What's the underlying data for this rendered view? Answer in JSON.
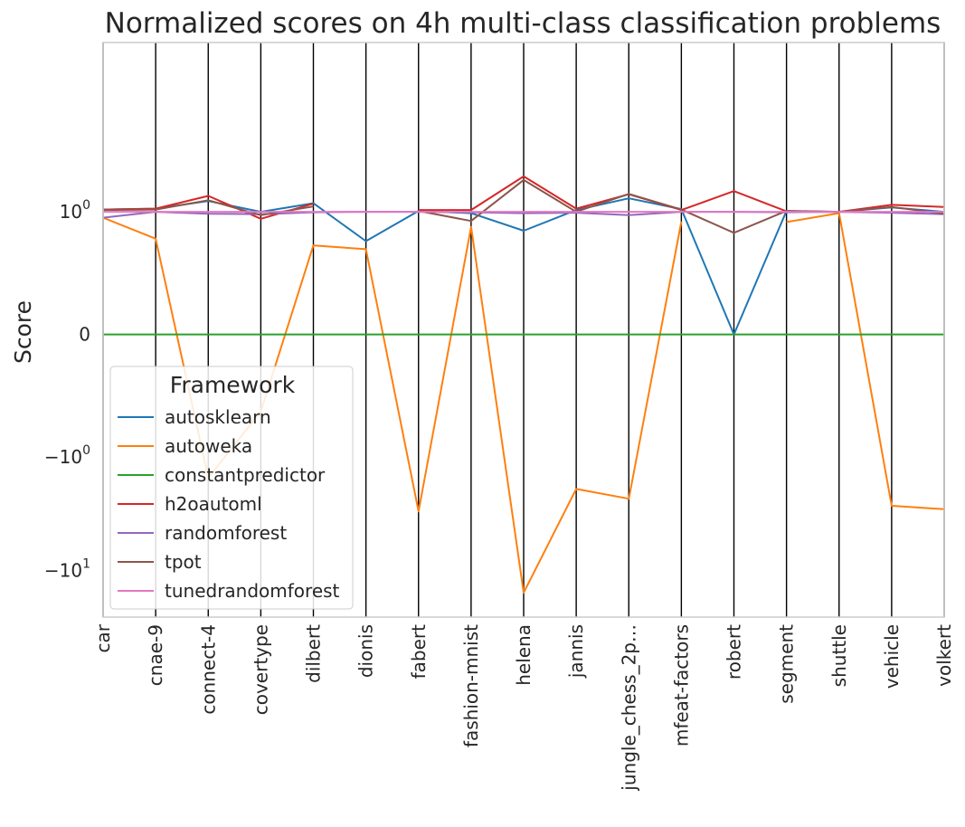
{
  "chart_data": {
    "type": "line",
    "title": "Normalized scores on 4h multi-class classification problems",
    "ylabel": "Score",
    "xlabel": "",
    "yscale": "symlog",
    "ylim": [
      -25,
      30
    ],
    "grid": false,
    "vertical_lines_at_categories": true,
    "yticks": [
      {
        "value": 1,
        "base": "10",
        "exp": "0",
        "sign": ""
      },
      {
        "value": 0,
        "label": "0"
      },
      {
        "value": -1,
        "base": "10",
        "exp": "0",
        "sign": "−"
      },
      {
        "value": -10,
        "base": "10",
        "exp": "1",
        "sign": "−"
      }
    ],
    "categories": [
      "car",
      "cnae-9",
      "connect-4",
      "covertype",
      "dilbert",
      "dionis",
      "fabert",
      "fashion-mnist",
      "helena",
      "jannis",
      "jungle_chess_2p…",
      "mfeat-factors",
      "robert",
      "segment",
      "shuttle",
      "vehicle",
      "volkert"
    ],
    "legend": {
      "title": "Framework",
      "placement": "lower left"
    },
    "series": [
      {
        "name": "autosklearn",
        "color": "#1f77b4",
        "values": [
          1.05,
          1.07,
          1.26,
          1.0,
          1.2,
          0.52,
          1.02,
          0.97,
          0.66,
          1.04,
          1.33,
          1.06,
          0.0,
          1.02,
          1.0,
          1.1,
          1.0
        ]
      },
      {
        "name": "autoweka",
        "color": "#ff7f0e",
        "values": [
          0.88,
          0.55,
          -1.55,
          -0.35,
          0.47,
          0.43,
          -3.08,
          0.72,
          -15.5,
          -1.95,
          -2.38,
          0.81,
          null,
          0.8,
          0.97,
          -2.75,
          -2.95
        ]
      },
      {
        "name": "constantpredictor",
        "color": "#2ca02c",
        "values": [
          0,
          0,
          0,
          0,
          0,
          0,
          0,
          0,
          0,
          0,
          0,
          0,
          0,
          0,
          0,
          0,
          0
        ]
      },
      {
        "name": "h2oautoml",
        "color": "#d62728",
        "values": [
          1.05,
          1.07,
          1.4,
          0.86,
          1.19,
          null,
          1.04,
          1.04,
          2.1,
          1.07,
          1.45,
          1.04,
          1.55,
          1.01,
          1.0,
          1.16,
          1.11
        ]
      },
      {
        "name": "randomforest",
        "color": "#9467bd",
        "values": [
          0.88,
          1.0,
          0.96,
          0.95,
          0.99,
          1.0,
          1.0,
          0.99,
          0.97,
          0.98,
          0.93,
          1.0,
          1.0,
          0.99,
          1.0,
          0.98,
          0.95
        ]
      },
      {
        "name": "tpot",
        "color": "#8c564b",
        "values": [
          1.04,
          1.05,
          1.28,
          0.93,
          1.12,
          null,
          1.02,
          0.82,
          1.95,
          1.0,
          1.46,
          1.05,
          0.63,
          1.02,
          1.0,
          1.11,
          0.96
        ]
      },
      {
        "name": "tunedrandomforest",
        "color": "#e377c2",
        "values": [
          1.0,
          1.0,
          1.0,
          1.0,
          1.0,
          1.0,
          1.0,
          1.0,
          1.0,
          1.0,
          1.0,
          1.0,
          1.0,
          1.0,
          1.0,
          1.0,
          1.0
        ]
      }
    ]
  }
}
